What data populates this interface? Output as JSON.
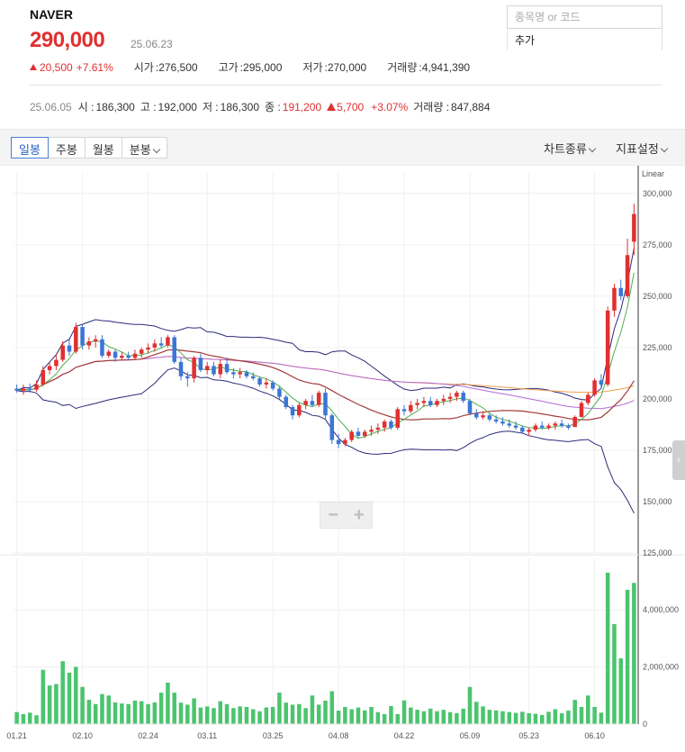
{
  "stock": {
    "name": "NAVER",
    "price": "290,000",
    "date": "25.06.23",
    "change": "20,500",
    "change_pct": "+7.61%",
    "open_label": "시가",
    "open": "276,500",
    "high_label": "고가",
    "high": "295,000",
    "low_label": "저가",
    "low": "270,000",
    "volume_label": "거래량",
    "volume": "4,941,390"
  },
  "search": {
    "placeholder": "종목명 or 코드",
    "add_label": "추가"
  },
  "hover_info": {
    "date": "25.06.05",
    "open_label": "시 :",
    "open": "186,300",
    "high_label": "고 :",
    "high": "192,000",
    "low_label": "저 :",
    "low": "186,300",
    "close_label": "종 :",
    "close": "191,200",
    "change": "5,700",
    "change_pct": "+3.07%",
    "volume_label": "거래량 :",
    "volume": "847,884"
  },
  "toolbar": {
    "tabs": [
      "일봉",
      "주봉",
      "월봉",
      "분봉"
    ],
    "active_tab": "일봉",
    "chart_type_label": "차트종류",
    "indicator_label": "지표설정"
  },
  "zoom": {
    "minus": "−",
    "plus": "+"
  },
  "colors": {
    "up": "#e03030",
    "down": "#3b76d6",
    "volume": "#4cc46e",
    "ma5": "#4caf50",
    "ma20": "#a33a3a",
    "ma60": "#b56bd6",
    "ma120": "#f0a04b",
    "bollinger": "#2b2b7a"
  },
  "chart_data": {
    "type": "candlestick",
    "scale_label": "Linear",
    "price_axis_ticks": [
      "300,000",
      "275,000",
      "250,000",
      "225,000",
      "200,000",
      "175,000",
      "150,000",
      "125,000"
    ],
    "price_ylim": [
      125000,
      310000
    ],
    "volume_axis_ticks": [
      "4,000,000",
      "2,000,000",
      "0"
    ],
    "volume_ylim": [
      0,
      5800000
    ],
    "date_axis_ticks": [
      "01.21",
      "02.10",
      "02.24",
      "03.11",
      "03.25",
      "04.08",
      "04.22",
      "05.09",
      "05.23",
      "06.10"
    ],
    "candles": [
      {
        "o": 205000,
        "h": 207000,
        "l": 203000,
        "c": 204000,
        "v": 420000
      },
      {
        "o": 204000,
        "h": 207000,
        "l": 202000,
        "c": 205000,
        "v": 350000
      },
      {
        "o": 205000,
        "h": 207500,
        "l": 203000,
        "c": 204500,
        "v": 400000
      },
      {
        "o": 204500,
        "h": 209000,
        "l": 203500,
        "c": 207000,
        "v": 310000
      },
      {
        "o": 207000,
        "h": 216000,
        "l": 206000,
        "c": 214000,
        "v": 1900000
      },
      {
        "o": 214000,
        "h": 218000,
        "l": 212000,
        "c": 216000,
        "v": 1350000
      },
      {
        "o": 216000,
        "h": 222000,
        "l": 214000,
        "c": 219000,
        "v": 1400000
      },
      {
        "o": 219000,
        "h": 228000,
        "l": 218000,
        "c": 226000,
        "v": 2200000
      },
      {
        "o": 226000,
        "h": 229000,
        "l": 221000,
        "c": 223000,
        "v": 1800000
      },
      {
        "o": 223000,
        "h": 237000,
        "l": 222000,
        "c": 235000,
        "v": 2000000
      },
      {
        "o": 235000,
        "h": 236000,
        "l": 224000,
        "c": 226000,
        "v": 1300000
      },
      {
        "o": 226000,
        "h": 230000,
        "l": 224000,
        "c": 228000,
        "v": 850000
      },
      {
        "o": 228000,
        "h": 231000,
        "l": 225000,
        "c": 229000,
        "v": 700000
      },
      {
        "o": 229000,
        "h": 231000,
        "l": 220000,
        "c": 221000,
        "v": 1050000
      },
      {
        "o": 221000,
        "h": 224000,
        "l": 220000,
        "c": 223000,
        "v": 1000000
      },
      {
        "o": 223000,
        "h": 224000,
        "l": 218000,
        "c": 220000,
        "v": 760000
      },
      {
        "o": 220000,
        "h": 223000,
        "l": 219000,
        "c": 221000,
        "v": 720000
      },
      {
        "o": 221000,
        "h": 223000,
        "l": 219000,
        "c": 220000,
        "v": 700000
      },
      {
        "o": 220000,
        "h": 224000,
        "l": 219000,
        "c": 222000,
        "v": 820000
      },
      {
        "o": 222000,
        "h": 225000,
        "l": 220000,
        "c": 224000,
        "v": 800000
      },
      {
        "o": 224000,
        "h": 227000,
        "l": 222000,
        "c": 225000,
        "v": 700000
      },
      {
        "o": 225000,
        "h": 229000,
        "l": 223000,
        "c": 227000,
        "v": 760000
      },
      {
        "o": 227000,
        "h": 230000,
        "l": 225000,
        "c": 226000,
        "v": 1100000
      },
      {
        "o": 226000,
        "h": 231000,
        "l": 225000,
        "c": 230000,
        "v": 1450000
      },
      {
        "o": 230000,
        "h": 231000,
        "l": 217000,
        "c": 218000,
        "v": 1100000
      },
      {
        "o": 218000,
        "h": 220000,
        "l": 209000,
        "c": 211000,
        "v": 750000
      },
      {
        "o": 211000,
        "h": 213000,
        "l": 206000,
        "c": 210000,
        "v": 680000
      },
      {
        "o": 210000,
        "h": 221000,
        "l": 208000,
        "c": 220000,
        "v": 900000
      },
      {
        "o": 220000,
        "h": 222000,
        "l": 213000,
        "c": 214000,
        "v": 580000
      },
      {
        "o": 214000,
        "h": 218000,
        "l": 212000,
        "c": 216000,
        "v": 620000
      },
      {
        "o": 216000,
        "h": 218000,
        "l": 211000,
        "c": 212000,
        "v": 560000
      },
      {
        "o": 212000,
        "h": 219000,
        "l": 210000,
        "c": 217000,
        "v": 800000
      },
      {
        "o": 217000,
        "h": 220000,
        "l": 212000,
        "c": 213000,
        "v": 700000
      },
      {
        "o": 213000,
        "h": 215000,
        "l": 210000,
        "c": 212000,
        "v": 560000
      },
      {
        "o": 212000,
        "h": 215000,
        "l": 210000,
        "c": 213000,
        "v": 620000
      },
      {
        "o": 213000,
        "h": 214000,
        "l": 210000,
        "c": 211000,
        "v": 600000
      },
      {
        "o": 211000,
        "h": 213000,
        "l": 209000,
        "c": 210000,
        "v": 520000
      },
      {
        "o": 210000,
        "h": 211000,
        "l": 206000,
        "c": 207000,
        "v": 450000
      },
      {
        "o": 207000,
        "h": 210000,
        "l": 205000,
        "c": 208000,
        "v": 580000
      },
      {
        "o": 208000,
        "h": 209000,
        "l": 204000,
        "c": 205000,
        "v": 600000
      },
      {
        "o": 205000,
        "h": 206000,
        "l": 200000,
        "c": 201000,
        "v": 1100000
      },
      {
        "o": 201000,
        "h": 202000,
        "l": 195000,
        "c": 196000,
        "v": 750000
      },
      {
        "o": 196000,
        "h": 197000,
        "l": 190000,
        "c": 192000,
        "v": 680000
      },
      {
        "o": 192000,
        "h": 198000,
        "l": 191000,
        "c": 197000,
        "v": 700000
      },
      {
        "o": 197000,
        "h": 200000,
        "l": 195000,
        "c": 199000,
        "v": 560000
      },
      {
        "o": 199000,
        "h": 202000,
        "l": 196000,
        "c": 197000,
        "v": 1000000
      },
      {
        "o": 197000,
        "h": 204000,
        "l": 196000,
        "c": 203000,
        "v": 680000
      },
      {
        "o": 203000,
        "h": 205000,
        "l": 190000,
        "c": 192000,
        "v": 820000
      },
      {
        "o": 192000,
        "h": 193000,
        "l": 178000,
        "c": 180000,
        "v": 1150000
      },
      {
        "o": 180000,
        "h": 183000,
        "l": 176000,
        "c": 178000,
        "v": 470000
      },
      {
        "o": 178000,
        "h": 181000,
        "l": 177000,
        "c": 180000,
        "v": 600000
      },
      {
        "o": 180000,
        "h": 185000,
        "l": 179000,
        "c": 184000,
        "v": 520000
      },
      {
        "o": 184000,
        "h": 186000,
        "l": 181000,
        "c": 182000,
        "v": 580000
      },
      {
        "o": 182000,
        "h": 185000,
        "l": 181000,
        "c": 184000,
        "v": 480000
      },
      {
        "o": 184000,
        "h": 187000,
        "l": 182000,
        "c": 185000,
        "v": 600000
      },
      {
        "o": 185000,
        "h": 188000,
        "l": 183000,
        "c": 186000,
        "v": 420000
      },
      {
        "o": 186000,
        "h": 190000,
        "l": 184000,
        "c": 189000,
        "v": 350000
      },
      {
        "o": 189000,
        "h": 190000,
        "l": 185000,
        "c": 186000,
        "v": 630000
      },
      {
        "o": 186000,
        "h": 196000,
        "l": 185000,
        "c": 195000,
        "v": 350000
      },
      {
        "o": 195000,
        "h": 197000,
        "l": 192000,
        "c": 194000,
        "v": 830000
      },
      {
        "o": 194000,
        "h": 199000,
        "l": 193000,
        "c": 197000,
        "v": 580000
      },
      {
        "o": 197000,
        "h": 200000,
        "l": 195000,
        "c": 198000,
        "v": 500000
      },
      {
        "o": 198000,
        "h": 201000,
        "l": 196000,
        "c": 199000,
        "v": 450000
      },
      {
        "o": 199000,
        "h": 201000,
        "l": 196000,
        "c": 197000,
        "v": 540000
      },
      {
        "o": 197000,
        "h": 200000,
        "l": 196000,
        "c": 199000,
        "v": 450000
      },
      {
        "o": 199000,
        "h": 202000,
        "l": 197000,
        "c": 200000,
        "v": 500000
      },
      {
        "o": 200000,
        "h": 203000,
        "l": 198000,
        "c": 201000,
        "v": 420000
      },
      {
        "o": 201000,
        "h": 204000,
        "l": 199000,
        "c": 203000,
        "v": 380000
      },
      {
        "o": 203000,
        "h": 204000,
        "l": 198000,
        "c": 199000,
        "v": 540000
      },
      {
        "o": 199000,
        "h": 200000,
        "l": 192000,
        "c": 193000,
        "v": 1300000
      },
      {
        "o": 193000,
        "h": 195000,
        "l": 190000,
        "c": 191000,
        "v": 780000
      },
      {
        "o": 191000,
        "h": 194000,
        "l": 190000,
        "c": 192000,
        "v": 620000
      },
      {
        "o": 192000,
        "h": 193000,
        "l": 189000,
        "c": 190000,
        "v": 500000
      },
      {
        "o": 190000,
        "h": 192000,
        "l": 188000,
        "c": 189000,
        "v": 480000
      },
      {
        "o": 189000,
        "h": 191000,
        "l": 187000,
        "c": 188000,
        "v": 450000
      },
      {
        "o": 188000,
        "h": 190000,
        "l": 186000,
        "c": 187000,
        "v": 420000
      },
      {
        "o": 187000,
        "h": 189000,
        "l": 185000,
        "c": 186000,
        "v": 390000
      },
      {
        "o": 186000,
        "h": 187000,
        "l": 183000,
        "c": 184000,
        "v": 430000
      },
      {
        "o": 184000,
        "h": 186000,
        "l": 182000,
        "c": 185000,
        "v": 380000
      },
      {
        "o": 185000,
        "h": 188000,
        "l": 184000,
        "c": 187000,
        "v": 360000
      },
      {
        "o": 187000,
        "h": 189000,
        "l": 185000,
        "c": 186000,
        "v": 320000
      },
      {
        "o": 186000,
        "h": 188000,
        "l": 185000,
        "c": 187000,
        "v": 430000
      },
      {
        "o": 187000,
        "h": 189000,
        "l": 185000,
        "c": 188000,
        "v": 520000
      },
      {
        "o": 188000,
        "h": 190000,
        "l": 186000,
        "c": 187000,
        "v": 380000
      },
      {
        "o": 187000,
        "h": 188000,
        "l": 185000,
        "c": 186000,
        "v": 470000
      },
      {
        "o": 186300,
        "h": 192000,
        "l": 186300,
        "c": 191200,
        "v": 847884
      },
      {
        "o": 191200,
        "h": 199000,
        "l": 191000,
        "c": 198000,
        "v": 600000
      },
      {
        "o": 198000,
        "h": 203000,
        "l": 197000,
        "c": 202000,
        "v": 1000000
      },
      {
        "o": 202000,
        "h": 210000,
        "l": 201000,
        "c": 209000,
        "v": 600000
      },
      {
        "o": 209000,
        "h": 212000,
        "l": 205000,
        "c": 207000,
        "v": 400000
      },
      {
        "o": 207000,
        "h": 245000,
        "l": 206000,
        "c": 243000,
        "v": 5300000
      },
      {
        "o": 243000,
        "h": 256000,
        "l": 240000,
        "c": 254000,
        "v": 3500000
      },
      {
        "o": 254000,
        "h": 258000,
        "l": 248000,
        "c": 250000,
        "v": 2300000
      },
      {
        "o": 250000,
        "h": 278000,
        "l": 249000,
        "c": 270000,
        "v": 4700000
      },
      {
        "o": 276500,
        "h": 295000,
        "l": 270000,
        "c": 290000,
        "v": 4941390
      }
    ]
  }
}
